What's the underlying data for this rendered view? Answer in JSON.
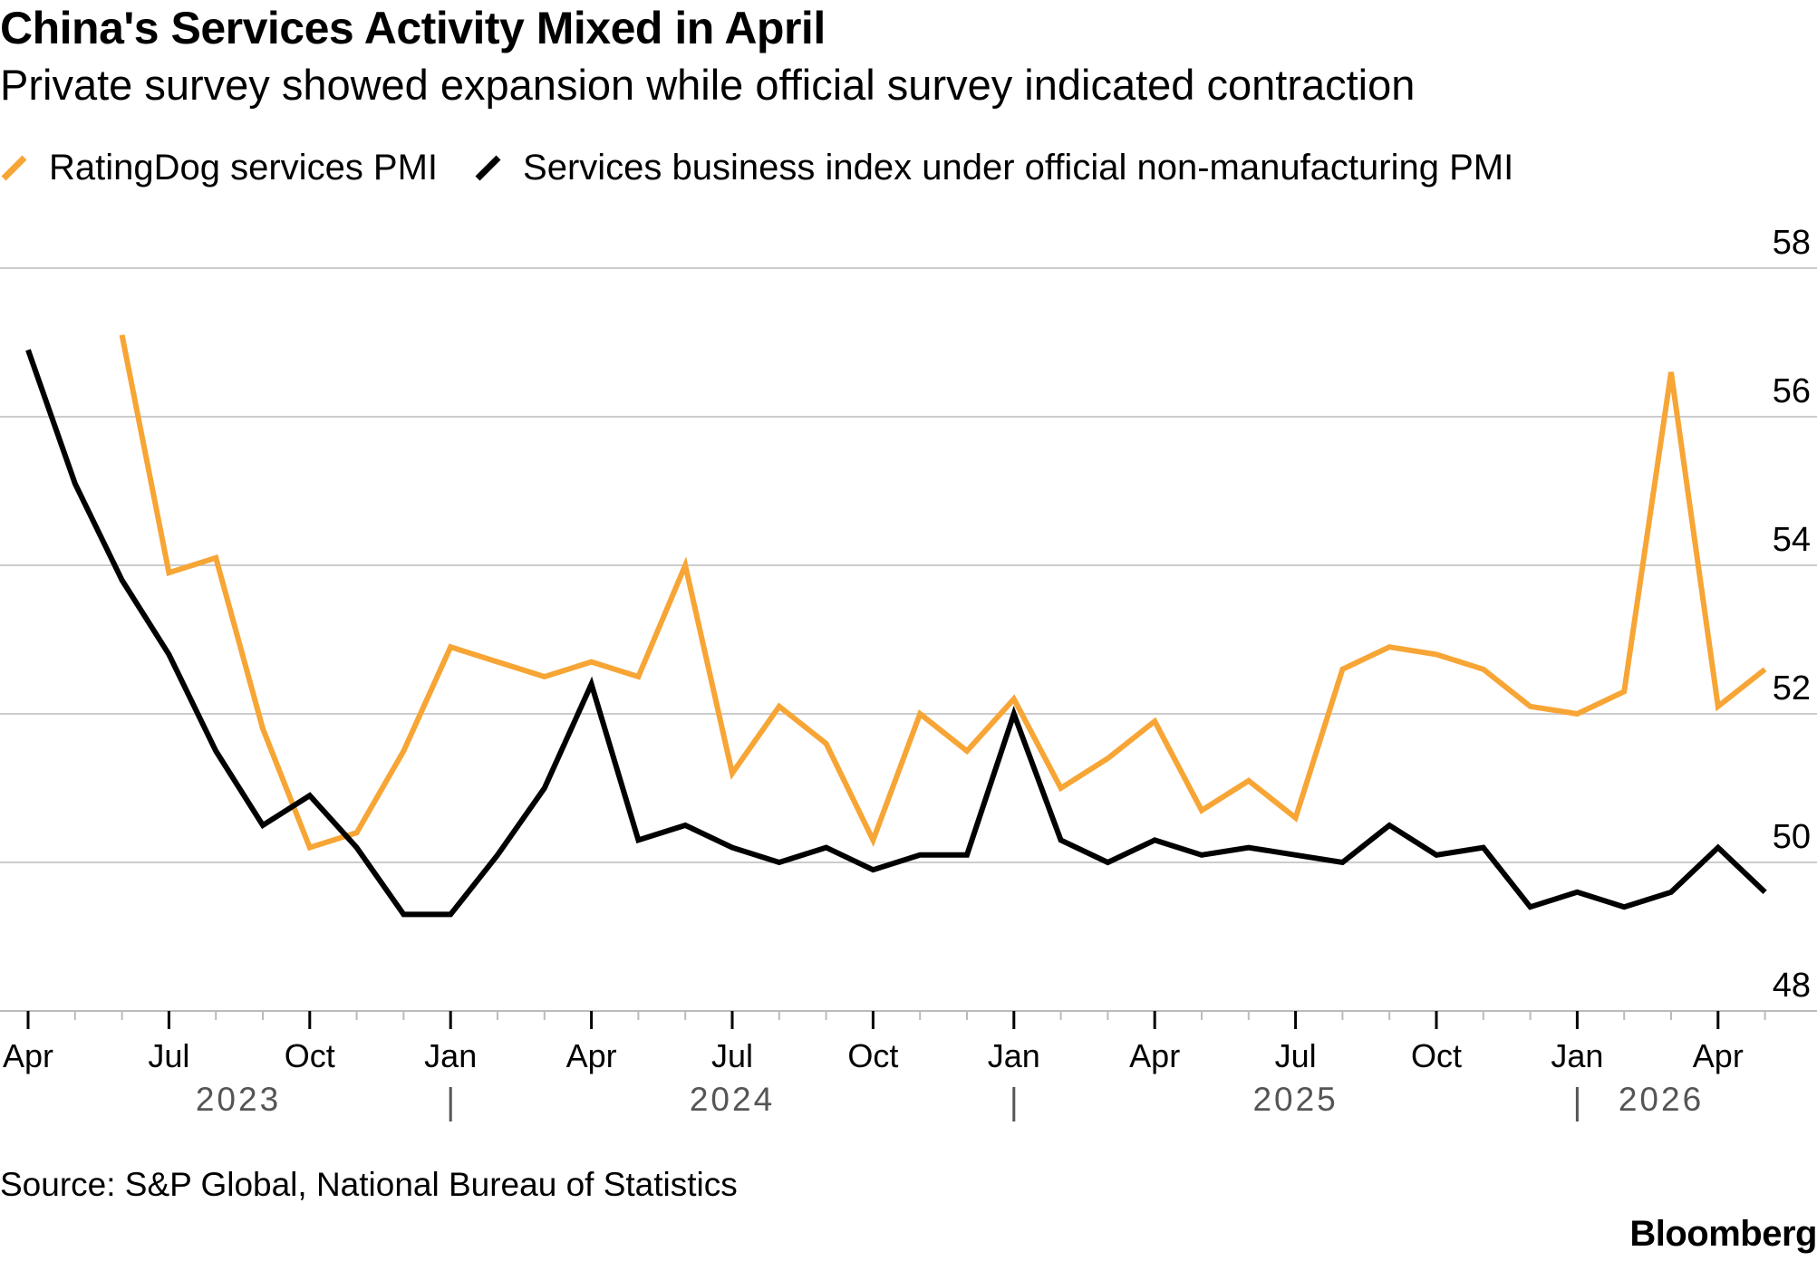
{
  "title": "China's Services Activity Mixed in April",
  "subtitle": "Private survey showed expansion while official survey indicated contraction",
  "source": "Source: S&P Global, National Bureau of Statistics",
  "brand": "Bloomberg",
  "colors": {
    "orange": "#F7A535",
    "black": "#000000",
    "grid": "#CCCCCC"
  },
  "chart_data": {
    "type": "line",
    "title": "China's Services Activity Mixed in April",
    "subtitle": "Private survey showed expansion while official survey indicated contraction",
    "ylim": [
      48,
      58
    ],
    "yticks": [
      48,
      50,
      52,
      54,
      56,
      58
    ],
    "grid": true,
    "legend_position": "top-left",
    "x": [
      "2023-04",
      "2023-05",
      "2023-06",
      "2023-07",
      "2023-08",
      "2023-09",
      "2023-10",
      "2023-11",
      "2023-12",
      "2024-01",
      "2024-02",
      "2024-03",
      "2024-04",
      "2024-05",
      "2024-06",
      "2024-07",
      "2024-08",
      "2024-09",
      "2024-10",
      "2024-11",
      "2024-12",
      "2025-01",
      "2025-02",
      "2025-03",
      "2025-04",
      "2025-05",
      "2025-06",
      "2025-07",
      "2025-08",
      "2025-09",
      "2025-10",
      "2025-11",
      "2025-12",
      "2026-01",
      "2026-02",
      "2026-03",
      "2026-04",
      "2026-05"
    ],
    "xtick_labels": [
      {
        "month": "2023-04",
        "label": "Apr"
      },
      {
        "month": "2023-07",
        "label": "Jul"
      },
      {
        "month": "2023-10",
        "label": "Oct"
      },
      {
        "month": "2024-01",
        "label": "Jan"
      },
      {
        "month": "2024-04",
        "label": "Apr"
      },
      {
        "month": "2024-07",
        "label": "Jul"
      },
      {
        "month": "2024-10",
        "label": "Oct"
      },
      {
        "month": "2025-01",
        "label": "Jan"
      },
      {
        "month": "2025-04",
        "label": "Apr"
      },
      {
        "month": "2025-07",
        "label": "Jul"
      },
      {
        "month": "2025-10",
        "label": "Oct"
      },
      {
        "month": "2026-01",
        "label": "Jan"
      },
      {
        "month": "2026-04",
        "label": "Apr"
      }
    ],
    "year_labels": [
      {
        "label": "2023",
        "center": "2023-08"
      },
      {
        "label": "2024",
        "center": "2024-07"
      },
      {
        "label": "2025",
        "center": "2025-07"
      },
      {
        "label": "2026",
        "center": "2026-04"
      }
    ],
    "year_dividers": [
      "2024-01",
      "2025-01",
      "2026-01"
    ],
    "series": [
      {
        "name": "RatingDog services PMI",
        "color": "#F7A535",
        "values": [
          null,
          null,
          57.1,
          53.9,
          54.1,
          51.8,
          50.2,
          50.4,
          51.5,
          52.9,
          52.7,
          52.5,
          52.7,
          52.5,
          54.0,
          51.2,
          52.1,
          51.6,
          50.3,
          52.0,
          51.5,
          52.2,
          51.0,
          51.4,
          51.9,
          50.7,
          51.1,
          50.6,
          52.6,
          52.9,
          52.8,
          52.6,
          52.1,
          52.0,
          52.3,
          56.6,
          52.1,
          52.6
        ]
      },
      {
        "name": "Services business index under official non-manufacturing PMI",
        "color": "#000000",
        "values": [
          56.9,
          55.1,
          53.8,
          52.8,
          51.5,
          50.5,
          50.9,
          50.2,
          49.3,
          49.3,
          50.1,
          51.0,
          52.4,
          50.3,
          50.5,
          50.2,
          50.0,
          50.2,
          49.9,
          50.1,
          50.1,
          52.0,
          50.3,
          50.0,
          50.3,
          50.1,
          50.2,
          50.1,
          50.0,
          50.5,
          50.1,
          50.2,
          49.4,
          49.6,
          49.4,
          49.6,
          50.2,
          49.6
        ]
      }
    ]
  }
}
